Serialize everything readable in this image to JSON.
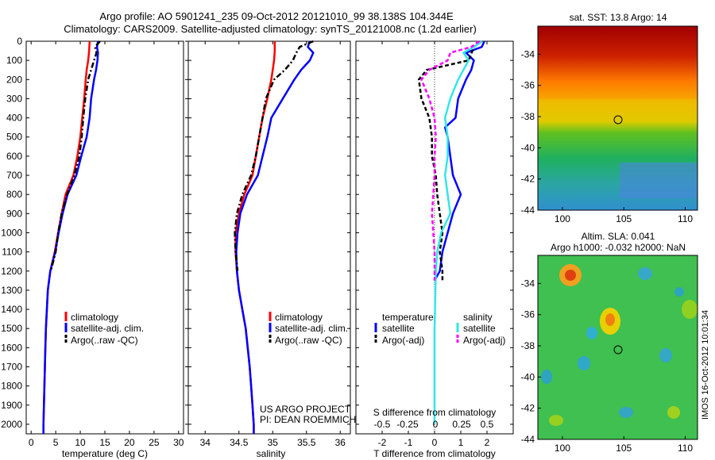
{
  "header": {
    "line1": "Argo profile: AO 5901241_235 09-Oct-2012 20121010_99 38.138S 104.344E",
    "line2": "Climatology: CARS2009. Satellite-adjusted climatology: synTS_20121008.nc (1.2d earlier)"
  },
  "colors": {
    "climatology": "#ff0000",
    "satellite": "#0000ff",
    "argo": "#000000",
    "s_satellite": "#33e6e6",
    "s_argo": "#ff00ff"
  },
  "y_depth": {
    "range": [
      0,
      2050
    ],
    "ticks": [
      0,
      100,
      200,
      300,
      400,
      500,
      600,
      700,
      800,
      900,
      1000,
      1100,
      1200,
      1300,
      1400,
      1500,
      1600,
      1700,
      1800,
      1900,
      2000
    ]
  },
  "temp_panel": {
    "xlabel": "temperature (deg C)",
    "xlim": [
      -1,
      31
    ],
    "xticks": [
      0,
      5,
      10,
      15,
      20,
      25,
      30
    ],
    "legend": [
      "climatology",
      "satellite-adj. clim.",
      "Argo(..raw -QC)"
    ],
    "series": {
      "clim": [
        [
          0,
          11.9
        ],
        [
          50,
          11.8
        ],
        [
          100,
          11.6
        ],
        [
          150,
          11.3
        ],
        [
          200,
          11.1
        ],
        [
          300,
          10.8
        ],
        [
          400,
          10.4
        ],
        [
          500,
          10.0
        ],
        [
          600,
          9.4
        ],
        [
          700,
          8.6
        ],
        [
          800,
          7.0
        ],
        [
          900,
          6.2
        ],
        [
          1000,
          5.5
        ],
        [
          1100,
          4.8
        ],
        [
          1200,
          3.9
        ],
        [
          1300,
          3.4
        ],
        [
          1400,
          3.2
        ],
        [
          1500,
          3.0
        ],
        [
          1600,
          2.9
        ],
        [
          1700,
          2.8
        ],
        [
          1800,
          2.7
        ],
        [
          1900,
          2.6
        ],
        [
          2000,
          2.5
        ],
        [
          2050,
          2.5
        ]
      ],
      "sat": [
        [
          0,
          13.6
        ],
        [
          30,
          13.4
        ],
        [
          60,
          13.6
        ],
        [
          100,
          13.5
        ],
        [
          150,
          13.2
        ],
        [
          200,
          12.8
        ],
        [
          300,
          12.2
        ],
        [
          400,
          11.9
        ],
        [
          500,
          11.3
        ],
        [
          600,
          10.2
        ],
        [
          700,
          9.2
        ],
        [
          800,
          7.4
        ],
        [
          900,
          6.4
        ],
        [
          1000,
          5.6
        ],
        [
          1100,
          4.9
        ],
        [
          1200,
          3.9
        ],
        [
          1300,
          3.4
        ],
        [
          1400,
          3.2
        ],
        [
          1500,
          3.0
        ],
        [
          1600,
          2.9
        ],
        [
          1700,
          2.8
        ],
        [
          1800,
          2.7
        ],
        [
          1900,
          2.6
        ],
        [
          2000,
          2.5
        ],
        [
          2050,
          2.5
        ]
      ],
      "argo": [
        [
          0,
          14.0
        ],
        [
          30,
          13.0
        ],
        [
          60,
          13.3
        ],
        [
          100,
          12.8
        ],
        [
          150,
          12.2
        ],
        [
          200,
          11.6
        ],
        [
          300,
          11.0
        ],
        [
          400,
          10.6
        ],
        [
          500,
          10.3
        ],
        [
          600,
          9.8
        ],
        [
          700,
          8.8
        ],
        [
          800,
          7.3
        ],
        [
          900,
          6.2
        ],
        [
          1000,
          5.5
        ],
        [
          1100,
          5.0
        ],
        [
          1200,
          4.0
        ]
      ]
    }
  },
  "sal_panel": {
    "xlabel": "salinity",
    "xlim": [
      33.75,
      36.15
    ],
    "xticks": [
      34,
      34.5,
      35,
      35.5,
      36
    ],
    "legend": [
      "climatology",
      "satellite-adj. clim.",
      "Argo(..raw -QC)"
    ],
    "note1": "US ARGO PROJECT",
    "note2": "PI: DEAN ROEMMICH",
    "series": {
      "clim": [
        [
          0,
          35.03
        ],
        [
          50,
          35.03
        ],
        [
          100,
          35.02
        ],
        [
          150,
          35.0
        ],
        [
          200,
          34.98
        ],
        [
          300,
          34.92
        ],
        [
          400,
          34.85
        ],
        [
          500,
          34.8
        ],
        [
          600,
          34.75
        ],
        [
          700,
          34.7
        ],
        [
          800,
          34.58
        ],
        [
          900,
          34.5
        ],
        [
          1000,
          34.45
        ],
        [
          1100,
          34.45
        ],
        [
          1200,
          34.47
        ],
        [
          1300,
          34.5
        ],
        [
          1400,
          34.55
        ],
        [
          1500,
          34.6
        ],
        [
          1600,
          34.63
        ],
        [
          1700,
          34.66
        ],
        [
          1800,
          34.68
        ],
        [
          1900,
          34.7
        ],
        [
          2000,
          34.72
        ],
        [
          2050,
          34.72
        ]
      ],
      "sat": [
        [
          0,
          35.55
        ],
        [
          30,
          35.52
        ],
        [
          60,
          35.6
        ],
        [
          100,
          35.55
        ],
        [
          150,
          35.42
        ],
        [
          200,
          35.32
        ],
        [
          300,
          35.15
        ],
        [
          400,
          34.98
        ],
        [
          500,
          34.92
        ],
        [
          600,
          34.85
        ],
        [
          700,
          34.78
        ],
        [
          800,
          34.62
        ],
        [
          900,
          34.52
        ],
        [
          1000,
          34.48
        ],
        [
          1100,
          34.46
        ],
        [
          1200,
          34.47
        ],
        [
          1300,
          34.5
        ],
        [
          1400,
          34.55
        ],
        [
          1500,
          34.6
        ],
        [
          1600,
          34.63
        ],
        [
          1700,
          34.66
        ],
        [
          1800,
          34.68
        ],
        [
          1900,
          34.7
        ],
        [
          2000,
          34.72
        ],
        [
          2050,
          34.72
        ]
      ],
      "argo": [
        [
          0,
          35.6
        ],
        [
          30,
          35.4
        ],
        [
          60,
          35.35
        ],
        [
          100,
          35.3
        ],
        [
          150,
          35.18
        ],
        [
          200,
          35.02
        ],
        [
          300,
          34.9
        ],
        [
          400,
          34.85
        ],
        [
          500,
          34.8
        ],
        [
          600,
          34.75
        ],
        [
          700,
          34.68
        ],
        [
          800,
          34.55
        ],
        [
          900,
          34.47
        ],
        [
          1000,
          34.44
        ],
        [
          1100,
          34.45
        ],
        [
          1200,
          34.48
        ]
      ]
    }
  },
  "diff_panel": {
    "xlabel": "T difference from climatology",
    "xlim": [
      -3,
      3
    ],
    "xticks": [
      -2,
      -1,
      0,
      1,
      2
    ],
    "top_label": "S difference from climatology",
    "top_ticks": [
      "-0.5",
      "-0.25",
      "0",
      "0.25",
      "0.5"
    ],
    "legend_t_title": "temperature",
    "legend_s_title": "salinity",
    "legend_t": [
      "satellite",
      "Argo(-adj)"
    ],
    "legend_s": [
      "satellite",
      "Argo(-adj)"
    ],
    "series": {
      "t_sat": [
        [
          0,
          1.9
        ],
        [
          30,
          1.8
        ],
        [
          60,
          1.2
        ],
        [
          100,
          1.5
        ],
        [
          150,
          1.4
        ],
        [
          200,
          1.2
        ],
        [
          300,
          0.9
        ],
        [
          400,
          0.8
        ],
        [
          450,
          0.4
        ],
        [
          500,
          0.5
        ],
        [
          600,
          0.6
        ],
        [
          700,
          0.7
        ],
        [
          800,
          1.0
        ],
        [
          900,
          0.7
        ],
        [
          1000,
          0.5
        ],
        [
          1100,
          0.3
        ],
        [
          1200,
          0.2
        ],
        [
          1250,
          0.0
        ]
      ],
      "t_argo": [
        [
          0,
          1.8
        ],
        [
          30,
          1.5
        ],
        [
          100,
          1.3
        ],
        [
          150,
          -0.3
        ],
        [
          200,
          -0.6
        ],
        [
          300,
          -0.5
        ],
        [
          400,
          -0.2
        ],
        [
          500,
          -0.1
        ],
        [
          600,
          -0.1
        ],
        [
          700,
          0.05
        ],
        [
          800,
          0.1
        ],
        [
          900,
          0.2
        ],
        [
          1000,
          0.3
        ],
        [
          1100,
          0.2
        ],
        [
          1200,
          0.3
        ],
        [
          1250,
          0.3
        ]
      ],
      "s_sat": [
        [
          0,
          1.8
        ],
        [
          30,
          1.5
        ],
        [
          60,
          1.1
        ],
        [
          100,
          1.3
        ],
        [
          150,
          1.1
        ],
        [
          200,
          0.9
        ],
        [
          300,
          0.6
        ],
        [
          400,
          0.4
        ],
        [
          500,
          0.5
        ],
        [
          600,
          0.5
        ],
        [
          700,
          0.4
        ],
        [
          800,
          0.5
        ],
        [
          900,
          0.6
        ],
        [
          1000,
          0.25
        ],
        [
          1100,
          0.1
        ],
        [
          1200,
          0.05
        ],
        [
          1500,
          0.0
        ],
        [
          2000,
          0.0
        ]
      ],
      "s_argo": [
        [
          0,
          1.7
        ],
        [
          30,
          1.4
        ],
        [
          60,
          0.6
        ],
        [
          100,
          0.5
        ],
        [
          150,
          -0.2
        ],
        [
          200,
          -0.5
        ],
        [
          300,
          -0.2
        ],
        [
          400,
          0.0
        ],
        [
          500,
          0.05
        ],
        [
          600,
          0.0
        ],
        [
          700,
          0.0
        ],
        [
          800,
          -0.05
        ],
        [
          900,
          -0.1
        ],
        [
          1000,
          -0.05
        ],
        [
          1100,
          0.0
        ],
        [
          1200,
          0.0
        ],
        [
          1250,
          0.0
        ]
      ]
    }
  },
  "map_sst": {
    "title": "sat. SST: 13.8 Argo: 14",
    "xticks": [
      100,
      105,
      110
    ],
    "yticks": [
      -34,
      -36,
      -38,
      -40,
      -42,
      -44
    ],
    "xlim": [
      98,
      111
    ],
    "ylim": [
      -44,
      -32.2
    ],
    "argo_marker": [
      104.3,
      -38.1
    ]
  },
  "map_sla": {
    "title1": "Altim. SLA: 0.041",
    "title2": "Argo h1000: -0.032 h2000: NaN",
    "xticks": [
      100,
      105,
      110
    ],
    "yticks": [
      -34,
      -36,
      -38,
      -40,
      -42,
      -44
    ],
    "xlim": [
      98,
      111
    ],
    "ylim": [
      -44,
      -32.2
    ],
    "argo_marker": [
      104.3,
      -38.1
    ]
  },
  "stamp": "IMOS 16-Oct-2012 10:01:34"
}
